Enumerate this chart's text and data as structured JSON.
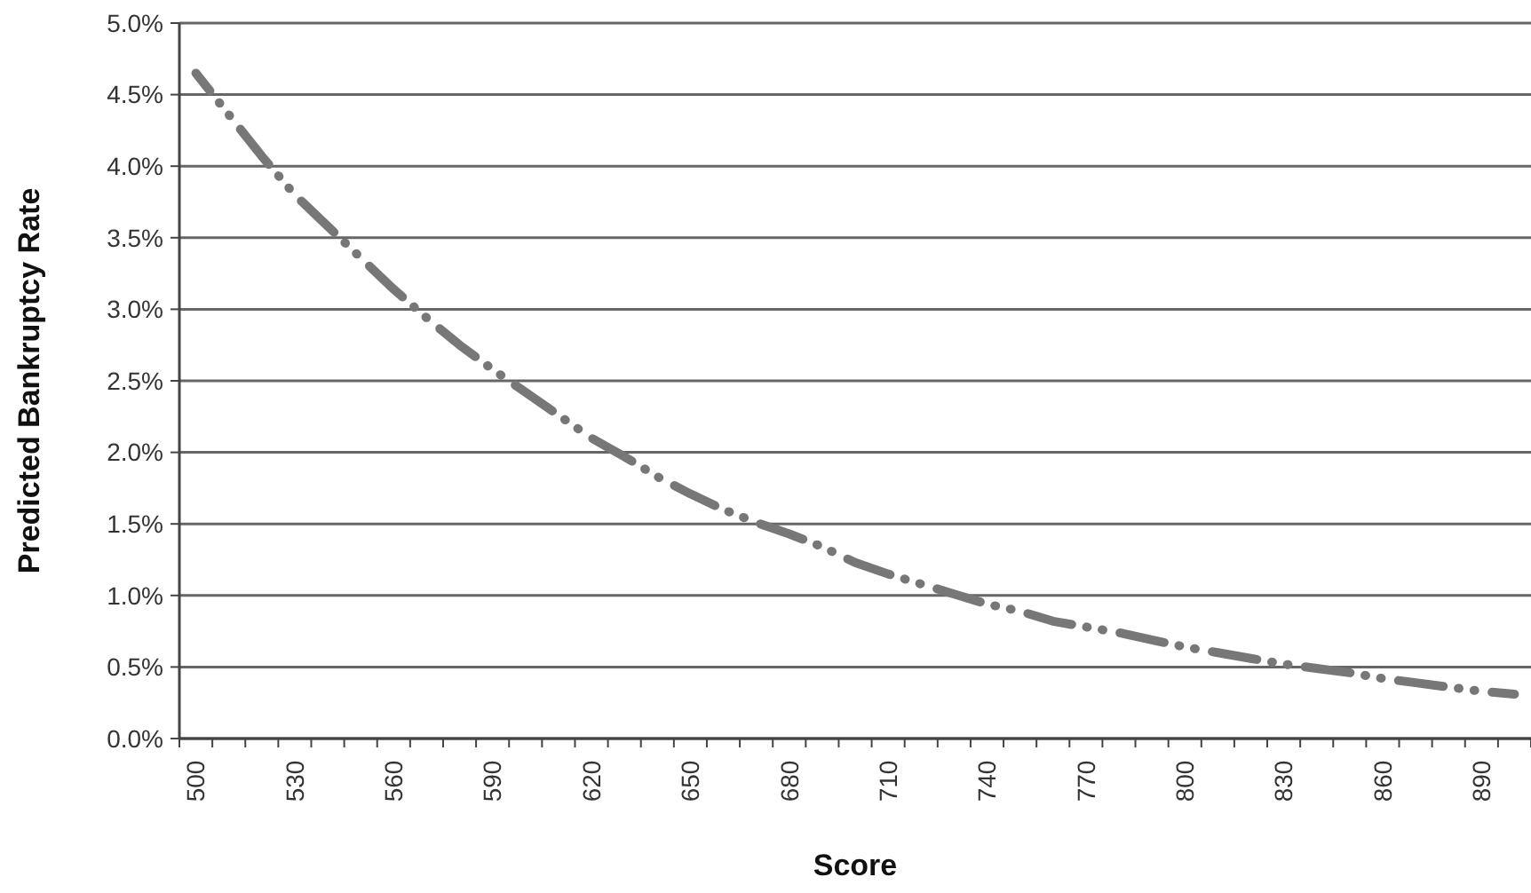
{
  "chart_data": {
    "type": "line",
    "xlabel": "Score",
    "ylabel": "Predicted Bankruptcy Rate",
    "categories": [
      "500",
      null,
      null,
      "530",
      null,
      null,
      "560",
      null,
      null,
      "590",
      null,
      null,
      "620",
      null,
      null,
      "650",
      null,
      null,
      "680",
      null,
      null,
      "710",
      null,
      null,
      "740",
      null,
      null,
      "770",
      null,
      null,
      "800",
      null,
      null,
      "830",
      null,
      null,
      "860",
      null,
      null,
      "890",
      null
    ],
    "series": [
      {
        "color": "#777777",
        "values": [
          4.65,
          4.36,
          4.07,
          3.8,
          3.58,
          3.36,
          3.14,
          2.94,
          2.75,
          2.58,
          2.42,
          2.26,
          2.1,
          1.97,
          1.83,
          1.71,
          1.6,
          1.51,
          1.43,
          1.34,
          1.23,
          1.15,
          1.08,
          1.01,
          0.94,
          0.89,
          0.82,
          0.78,
          0.74,
          0.69,
          0.64,
          0.6,
          0.56,
          0.52,
          0.49,
          0.46,
          0.42,
          0.39,
          0.36,
          0.33,
          0.31
        ]
      }
    ],
    "ylim": [
      0,
      5
    ],
    "yticks": [
      {
        "value": 0,
        "label": "0.0%"
      },
      {
        "value": 0.5,
        "label": "0.5%"
      },
      {
        "value": 1,
        "label": "1.0%"
      },
      {
        "value": 1.5,
        "label": "1.5%"
      },
      {
        "value": 2,
        "label": "2.0%"
      },
      {
        "value": 2.5,
        "label": "2.5%"
      },
      {
        "value": 3,
        "label": "3.0%"
      },
      {
        "value": 3.5,
        "label": "3.5%"
      },
      {
        "value": 4,
        "label": "4.0%"
      },
      {
        "value": 4.5,
        "label": "4.5%"
      },
      {
        "value": 5,
        "label": "5.0%"
      }
    ],
    "grid": "y",
    "line_style": "dashed",
    "marker": "none"
  }
}
